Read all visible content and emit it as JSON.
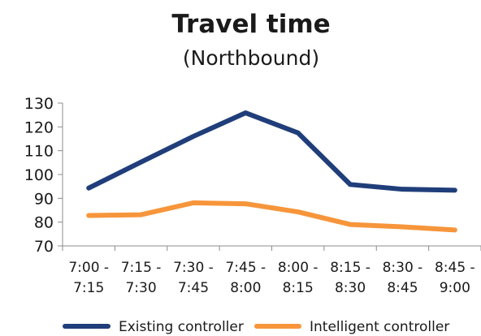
{
  "chart_data": {
    "type": "line",
    "title": "Travel time",
    "subtitle": "(Northbound)",
    "xlabel": "",
    "ylabel": "",
    "ylim": [
      70,
      130
    ],
    "yticks": [
      "70",
      "80",
      "90",
      "100",
      "110",
      "120",
      "130"
    ],
    "categories": [
      [
        "7:00 -",
        "7:15"
      ],
      [
        "7:15 -",
        "7:30"
      ],
      [
        "7:30 -",
        "7:45"
      ],
      [
        "7:45 -",
        "8:00"
      ],
      [
        "8:00 -",
        "8:15"
      ],
      [
        "8:15 -",
        "8:30"
      ],
      [
        "8:30 -",
        "8:45"
      ],
      [
        "8:45 -",
        "9:00"
      ]
    ],
    "series": [
      {
        "name": "Existing controller",
        "color": "#1f3e7a",
        "values": [
          94.3,
          105.2,
          116.0,
          125.9,
          117.5,
          95.8,
          93.8,
          93.4
        ]
      },
      {
        "name": "Intelligent controller",
        "color": "#f7953b",
        "values": [
          82.8,
          83.1,
          88.1,
          87.7,
          84.3,
          79.0,
          78.0,
          76.7
        ]
      }
    ],
    "grid": false,
    "legend": "bottom"
  }
}
